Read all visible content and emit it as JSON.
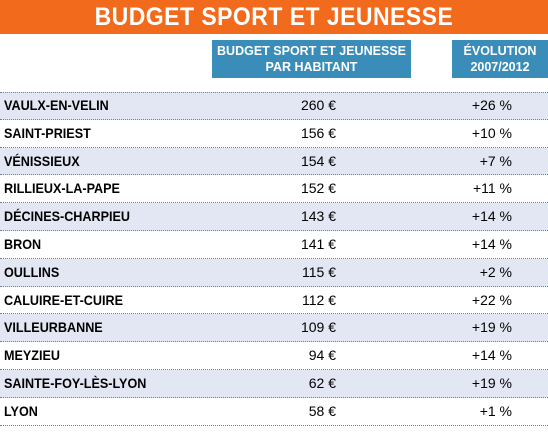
{
  "title": "BUDGET SPORT ET JEUNESSE",
  "columns": {
    "budget": "BUDGET SPORT ET JEUNESSE\nPAR HABITANT",
    "evolution": "ÉVOLUTION\n2007/2012"
  },
  "colors": {
    "title_bar": "#f26a1b",
    "header": "#3a8db8",
    "row_shade": "#e3e7f3"
  },
  "chart_data": {
    "type": "table",
    "title": "BUDGET SPORT ET JEUNESSE",
    "columns": [
      "",
      "BUDGET SPORT ET JEUNESSE PAR HABITANT",
      "ÉVOLUTION 2007/2012"
    ],
    "rows": [
      {
        "city": "VAULX-EN-VELIN",
        "budget": "260 €",
        "evolution": "+26 %"
      },
      {
        "city": "SAINT-PRIEST",
        "budget": "156 €",
        "evolution": "+10 %"
      },
      {
        "city": "VÉNISSIEUX",
        "budget": "154 €",
        "evolution": "+7 %"
      },
      {
        "city": "RILLIEUX-LA-PAPE",
        "budget": "152 €",
        "evolution": "+11 %"
      },
      {
        "city": "DÉCINES-CHARPIEU",
        "budget": "143 €",
        "evolution": "+14 %"
      },
      {
        "city": "BRON",
        "budget": "141 €",
        "evolution": "+14 %"
      },
      {
        "city": "OULLINS",
        "budget": "115 €",
        "evolution": "+2 %"
      },
      {
        "city": "CALUIRE-ET-CUIRE",
        "budget": "112 €",
        "evolution": "+22 %"
      },
      {
        "city": "VILLEURBANNE",
        "budget": "109 €",
        "evolution": "+19 %"
      },
      {
        "city": "MEYZIEU",
        "budget": "94 €",
        "evolution": "+14 %"
      },
      {
        "city": "SAINTE-FOY-LÈS-LYON",
        "budget": "62 €",
        "evolution": "+19 %"
      },
      {
        "city": "LYON",
        "budget": "58 €",
        "evolution": "+1 %"
      }
    ]
  }
}
